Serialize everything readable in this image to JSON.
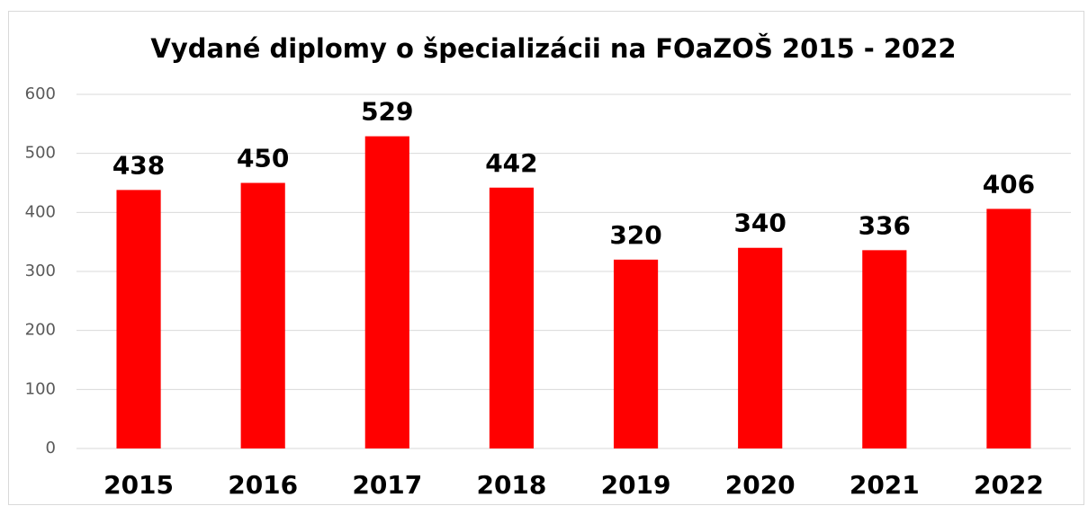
{
  "chart_data": {
    "type": "bar",
    "title": "Vydané diplomy o špecializácii na FOaZOŠ 2015 - 2022",
    "categories": [
      "2015",
      "2016",
      "2017",
      "2018",
      "2019",
      "2020",
      "2021",
      "2022"
    ],
    "values": [
      438,
      450,
      529,
      442,
      320,
      340,
      336,
      406
    ],
    "color": "#ff0000",
    "ylim": [
      0,
      600
    ],
    "yticks": [
      0,
      100,
      200,
      300,
      400,
      500,
      600
    ],
    "grid": true
  }
}
